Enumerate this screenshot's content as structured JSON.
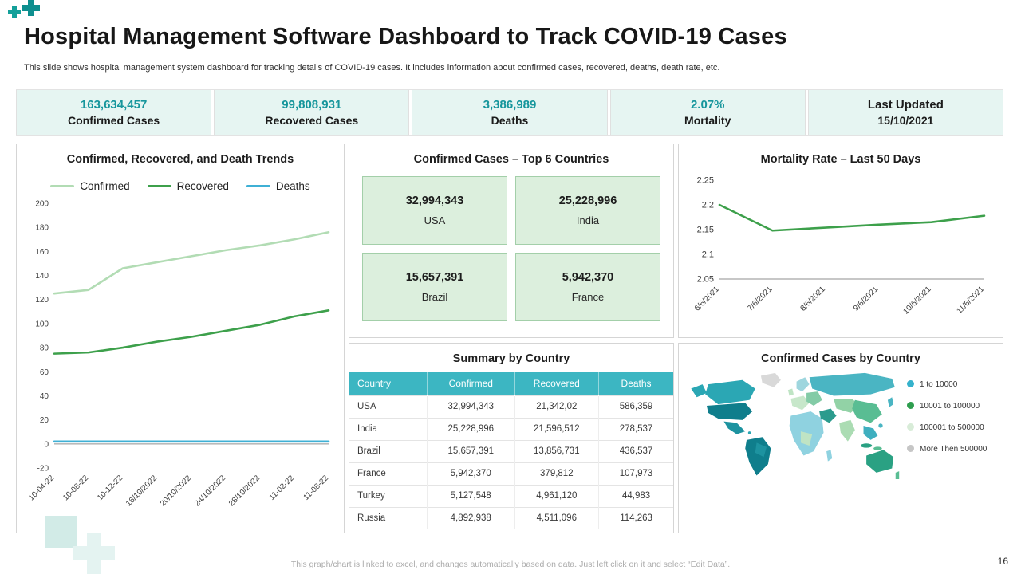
{
  "slide": {
    "title": "Hospital Management Software Dashboard to Track COVID-19 Cases",
    "subtitle": "This slide shows hospital management system dashboard for tracking details of COVID-19 cases. It includes information about confirmed cases, recovered, deaths, death rate, etc.",
    "footer": "This graph/chart is linked to excel, and changes automatically based on data. Just left click on it and select “Edit Data”.",
    "page_number": "16"
  },
  "kpis": [
    {
      "value": "163,634,457",
      "label": "Confirmed Cases"
    },
    {
      "value": "99,808,931",
      "label": "Recovered Cases"
    },
    {
      "value": "3,386,989",
      "label": "Deaths"
    },
    {
      "value": "2.07%",
      "label": "Mortality"
    },
    {
      "value": "Last Updated",
      "label": "15/10/2021"
    }
  ],
  "panels": {
    "trends": {
      "title": "Confirmed, Recovered, and Death Trends"
    },
    "top_countries": {
      "title": "Confirmed Cases – Top 6 Countries",
      "cards": [
        {
          "value": "32,994,343",
          "name": "USA"
        },
        {
          "value": "25,228,996",
          "name": "India"
        },
        {
          "value": "15,657,391",
          "name": "Brazil"
        },
        {
          "value": "5,942,370",
          "name": "France"
        }
      ]
    },
    "summary": {
      "title": "Summary by Country",
      "headers": [
        "Country",
        "Confirmed",
        "Recovered",
        "Deaths"
      ],
      "rows": [
        [
          "USA",
          "32,994,343",
          "21,342,02",
          "586,359"
        ],
        [
          "India",
          "25,228,996",
          "21,596,512",
          "278,537"
        ],
        [
          "Brazil",
          "15,657,391",
          "13,856,731",
          "436,537"
        ],
        [
          "France",
          "5,942,370",
          "379,812",
          "107,973"
        ],
        [
          "Turkey",
          "5,127,548",
          "4,961,120",
          "44,983"
        ],
        [
          "Russia",
          "4,892,938",
          "4,511,096",
          "114,263"
        ]
      ]
    },
    "mortality": {
      "title": "Mortality Rate – Last 50 Days"
    },
    "map": {
      "title": "Confirmed Cases by Country",
      "legend": [
        {
          "label": "1 to 10000",
          "color": "#35b2cc"
        },
        {
          "label": "10001 to 100000",
          "color": "#2f9e4f"
        },
        {
          "label": "100001 to 500000",
          "color": "#d8ecd8"
        },
        {
          "label": "More Then 500000",
          "color": "#c6c6c6"
        }
      ]
    }
  },
  "chart_data": [
    {
      "id": "trends-chart",
      "type": "line",
      "title": "Confirmed, Recovered, and Death Trends",
      "categories": [
        "10-04-22",
        "10-08-22",
        "10-12-22",
        "16/10/2022",
        "20/10/2022",
        "24/10/2022",
        "28/10/2022",
        "11-02-22",
        "11-08-22"
      ],
      "series": [
        {
          "name": "Confirmed",
          "color": "#b2dcb4",
          "values": [
            125,
            128,
            146,
            151,
            156,
            161,
            165,
            170,
            176
          ]
        },
        {
          "name": "Recovered",
          "color": "#3da04b",
          "values": [
            75,
            76,
            80,
            85,
            89,
            94,
            99,
            106,
            111
          ]
        },
        {
          "name": "Deaths",
          "color": "#3fb0d5",
          "values": [
            2,
            2,
            2,
            2,
            2,
            2,
            2,
            2,
            2
          ]
        }
      ],
      "ylim": [
        -20,
        200
      ],
      "ytick_step": 20,
      "legend_position": "top",
      "grid": false
    },
    {
      "id": "mortality-chart",
      "type": "line",
      "title": "Mortality Rate – Last 50 Days",
      "categories": [
        "6/6/2021",
        "7/6/2021",
        "8/6/2021",
        "9/6/2021",
        "10/6/2021",
        "11/6/2021"
      ],
      "series": [
        {
          "name": "Mortality Rate",
          "color": "#3da04b",
          "values": [
            2.2,
            2.148,
            2.154,
            2.16,
            2.165,
            2.178
          ]
        }
      ],
      "ylim": [
        2.05,
        2.25
      ],
      "yticks": [
        2.25,
        2.2,
        2.15,
        2.1,
        2.05
      ],
      "legend_position": "none",
      "grid": false
    }
  ]
}
